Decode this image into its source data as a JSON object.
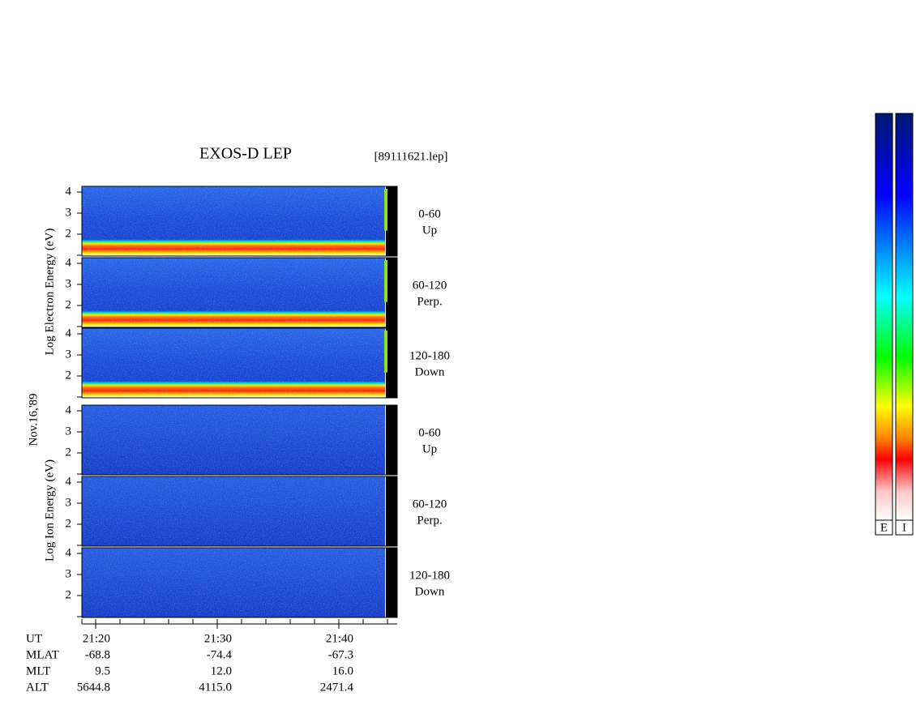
{
  "header": {
    "title": "EXOS-D LEP",
    "file": "[89111621.lep]"
  },
  "date": "Nov.16,'89",
  "electron": {
    "axis_label": "Log Electron Energy (eV)",
    "panels": [
      {
        "range": "0-60",
        "dir": "Up"
      },
      {
        "range": "60-120",
        "dir": "Perp."
      },
      {
        "range": "120-180",
        "dir": "Down"
      }
    ]
  },
  "ion": {
    "axis_label": "Log Ion Energy (eV)",
    "panels": [
      {
        "range": "0-60",
        "dir": "Up"
      },
      {
        "range": "60-120",
        "dir": "Perp."
      },
      {
        "range": "120-180",
        "dir": "Down"
      }
    ]
  },
  "energy_ticks": [
    "4",
    "3",
    "2"
  ],
  "footer": {
    "rows": [
      [
        "UT",
        "21:20",
        "21:30",
        "21:40"
      ],
      [
        "MLAT",
        "-68.8",
        "-74.4",
        "-67.3"
      ],
      [
        "MLT",
        "9.5",
        "12.0",
        "16.0"
      ],
      [
        "ALT",
        "5644.8",
        "4115.0",
        "2471.4"
      ]
    ]
  },
  "colorbars": [
    "E",
    "I"
  ]
}
